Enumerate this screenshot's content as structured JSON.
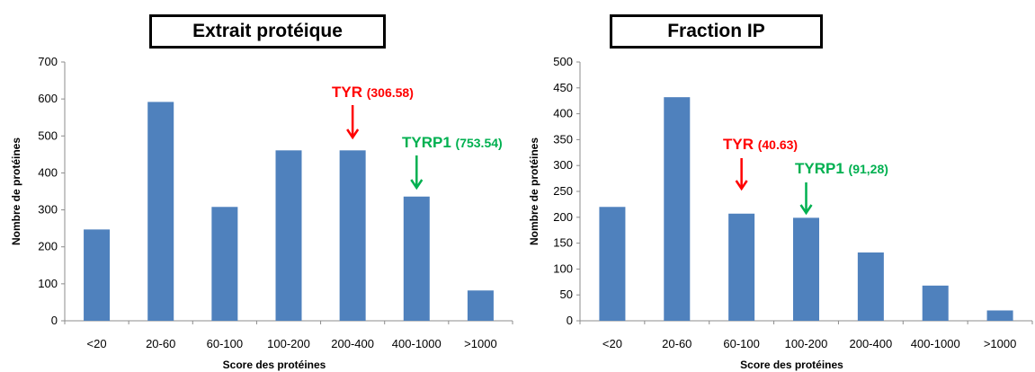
{
  "chart_data": [
    {
      "type": "bar",
      "title": "Extrait protéique",
      "xlabel": "Score des protéines",
      "ylabel": "Nombre de protéines",
      "categories": [
        "<20",
        "20-60",
        "60-100",
        "100-200",
        "200-400",
        "400-1000",
        ">1000"
      ],
      "values": [
        247,
        592,
        308,
        461,
        461,
        336,
        82
      ],
      "ylim": [
        0,
        700
      ],
      "yticks": [
        0,
        100,
        200,
        300,
        400,
        500,
        600,
        700
      ],
      "bar_color": "#4f81bd",
      "grid": false,
      "annotations": [
        {
          "name": "TYR",
          "value": "(306.58)",
          "category": "200-400",
          "color": "#ff0000"
        },
        {
          "name": "TYRP1",
          "value": "(753.54)",
          "category": "400-1000",
          "color": "#00b050"
        }
      ]
    },
    {
      "type": "bar",
      "title": "Fraction IP",
      "xlabel": "Score des protéines",
      "ylabel": "Nombre de protéines",
      "categories": [
        "<20",
        "20-60",
        "60-100",
        "100-200",
        "200-400",
        "400-1000",
        ">1000"
      ],
      "values": [
        220,
        432,
        207,
        199,
        132,
        68,
        20
      ],
      "ylim": [
        0,
        500
      ],
      "yticks": [
        0,
        50,
        100,
        150,
        200,
        250,
        300,
        350,
        400,
        450,
        500
      ],
      "bar_color": "#4f81bd",
      "grid": false,
      "annotations": [
        {
          "name": "TYR",
          "value": "(40.63)",
          "category": "60-100",
          "color": "#ff0000"
        },
        {
          "name": "TYRP1",
          "value": "(91,28)",
          "category": "100-200",
          "color": "#00b050"
        }
      ]
    }
  ]
}
